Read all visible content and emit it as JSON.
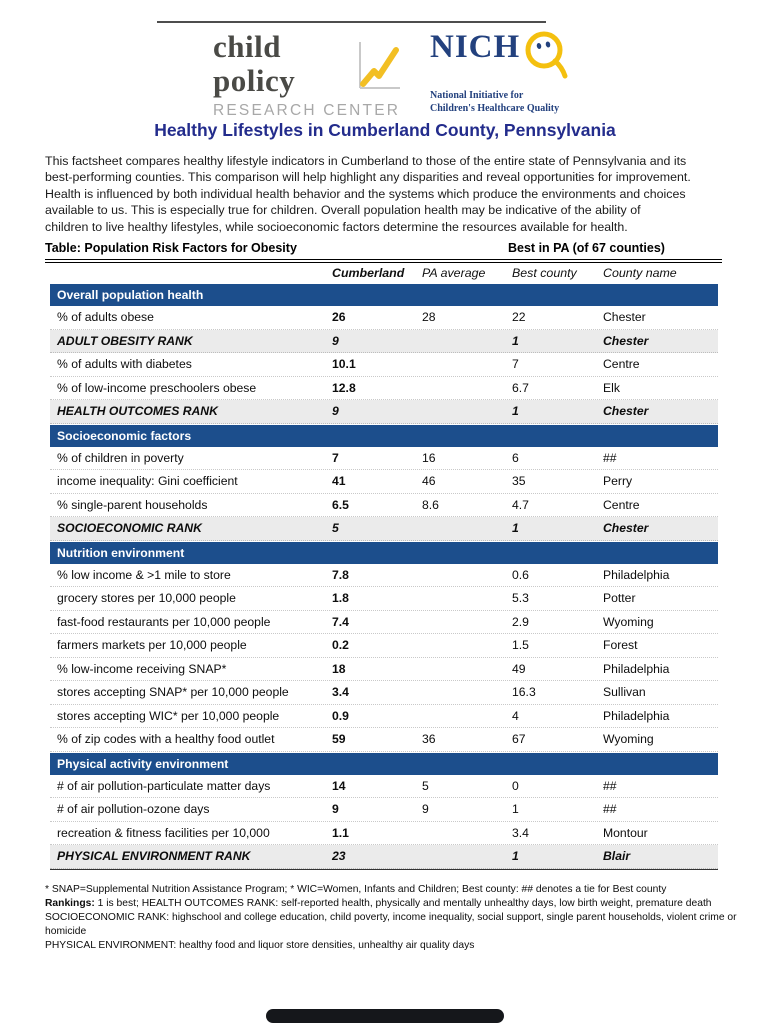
{
  "logos": {
    "cprc": {
      "line1": "child policy",
      "line2": "RESEARCH CENTER"
    },
    "nichq": {
      "acronym": "NICH",
      "tagline1": "National Initiative for",
      "tagline2": "Children's Healthcare Quality"
    }
  },
  "title": "Healthy Lifestyles in Cumberland County, Pennsylvania",
  "intro": {
    "lines": [
      "This factsheet compares healthy lifestyle indicators in Cumberland to those of the entire state of Pennsylvania and its",
      "best-performing counties. This comparison will help highlight any disparities and reveal opportunities for improvement.",
      "Health is influenced by both individual health behavior and the systems which produce the environments and choices",
      "available to us. This is especially true for children. Overall population health may be indicative of the ability of",
      "children to live healthy lifestyles, while socioeconomic factors determine the resources available for health."
    ]
  },
  "table": {
    "caption": "Table: Population Risk Factors for Obesity",
    "best_header": "Best in PA (of 67 counties)",
    "columns": [
      "Cumberland",
      "PA average",
      "Best county",
      "County name"
    ],
    "sections": [
      {
        "name": "Overall population health",
        "rows": [
          {
            "label": "% of adults obese",
            "cumberland": "26",
            "pa": "28",
            "best": "22",
            "county": "Chester",
            "rank": false
          },
          {
            "label": "ADULT OBESITY RANK",
            "cumberland": "9",
            "pa": "",
            "best": "1",
            "county": "Chester",
            "rank": true
          },
          {
            "label": "% of adults with diabetes",
            "cumberland": "10.1",
            "pa": "",
            "best": "7",
            "county": "Centre",
            "rank": false
          },
          {
            "label": "% of low-income preschoolers obese",
            "cumberland": "12.8",
            "pa": "",
            "best": "6.7",
            "county": "Elk",
            "rank": false
          },
          {
            "label": "HEALTH OUTCOMES RANK",
            "cumberland": "9",
            "pa": "",
            "best": "1",
            "county": "Chester",
            "rank": true
          }
        ]
      },
      {
        "name": "Socioeconomic factors",
        "rows": [
          {
            "label": "% of children in poverty",
            "cumberland": "7",
            "pa": "16",
            "best": "6",
            "county": "##",
            "rank": false
          },
          {
            "label": "income inequality: Gini coefficient",
            "cumberland": "41",
            "pa": "46",
            "best": "35",
            "county": "Perry",
            "rank": false
          },
          {
            "label": "% single-parent households",
            "cumberland": "6.5",
            "pa": "8.6",
            "best": "4.7",
            "county": "Centre",
            "rank": false
          },
          {
            "label": "SOCIOECONOMIC RANK",
            "cumberland": "5",
            "pa": "",
            "best": "1",
            "county": "Chester",
            "rank": true
          }
        ]
      },
      {
        "name": "Nutrition environment",
        "rows": [
          {
            "label": "% low income & >1 mile to store",
            "cumberland": "7.8",
            "pa": "",
            "best": "0.6",
            "county": "Philadelphia",
            "rank": false
          },
          {
            "label": "grocery stores per 10,000 people",
            "cumberland": "1.8",
            "pa": "",
            "best": "5.3",
            "county": "Potter",
            "rank": false
          },
          {
            "label": "fast-food restaurants per 10,000 people",
            "cumberland": "7.4",
            "pa": "",
            "best": "2.9",
            "county": "Wyoming",
            "rank": false
          },
          {
            "label": "farmers markets per 10,000 people",
            "cumberland": "0.2",
            "pa": "",
            "best": "1.5",
            "county": "Forest",
            "rank": false
          },
          {
            "label": "% low-income receiving SNAP*",
            "cumberland": "18",
            "pa": "",
            "best": "49",
            "county": "Philadelphia",
            "rank": false
          },
          {
            "label": "stores accepting SNAP* per 10,000 people",
            "cumberland": "3.4",
            "pa": "",
            "best": "16.3",
            "county": "Sullivan",
            "rank": false
          },
          {
            "label": "stores accepting WIC* per 10,000 people",
            "cumberland": "0.9",
            "pa": "",
            "best": "4",
            "county": "Philadelphia",
            "rank": false
          },
          {
            "label": "% of zip codes with a healthy food outlet",
            "cumberland": "59",
            "pa": "36",
            "best": "67",
            "county": "Wyoming",
            "rank": false
          }
        ]
      },
      {
        "name": "Physical activity environment",
        "rows": [
          {
            "label": "# of air pollution-particulate matter days",
            "cumberland": "14",
            "pa": "5",
            "best": "0",
            "county": "##",
            "rank": false
          },
          {
            "label": "# of air pollution-ozone days",
            "cumberland": "9",
            "pa": "9",
            "best": "1",
            "county": "##",
            "rank": false
          },
          {
            "label": "recreation & fitness facilities per 10,000",
            "cumberland": "1.1",
            "pa": "",
            "best": "3.4",
            "county": "Montour",
            "rank": false
          },
          {
            "label": "PHYSICAL ENVIRONMENT RANK",
            "cumberland": "23",
            "pa": "",
            "best": "1",
            "county": "Blair",
            "rank": true
          }
        ]
      }
    ]
  },
  "footnotes": {
    "line1": "* SNAP=Supplemental Nutrition Assistance Program; * WIC=Women, Infants and Children; Best county: ## denotes a tie for Best county",
    "rankings_label": "Rankings:",
    "line2_rest": "  1 is best; HEALTH OUTCOMES RANK: self-reported health, physically and mentally unhealthy days, low birth weight, premature death",
    "line3": "SOCIOECONOMIC RANK: highschool and college education, child poverty, income inequality, social support, single parent households, violent crime or homicide",
    "line4": "PHYSICAL ENVIRONMENT: healthy food and liquor store densities, unhealthy air quality days"
  },
  "colors": {
    "section_band_blue": "#1C4E8C",
    "title_blue": "#232C8C",
    "logo_navy": "#23417E",
    "logo_yellow": "#F4C00F",
    "rank_row_bg": "#EBEBEB"
  }
}
